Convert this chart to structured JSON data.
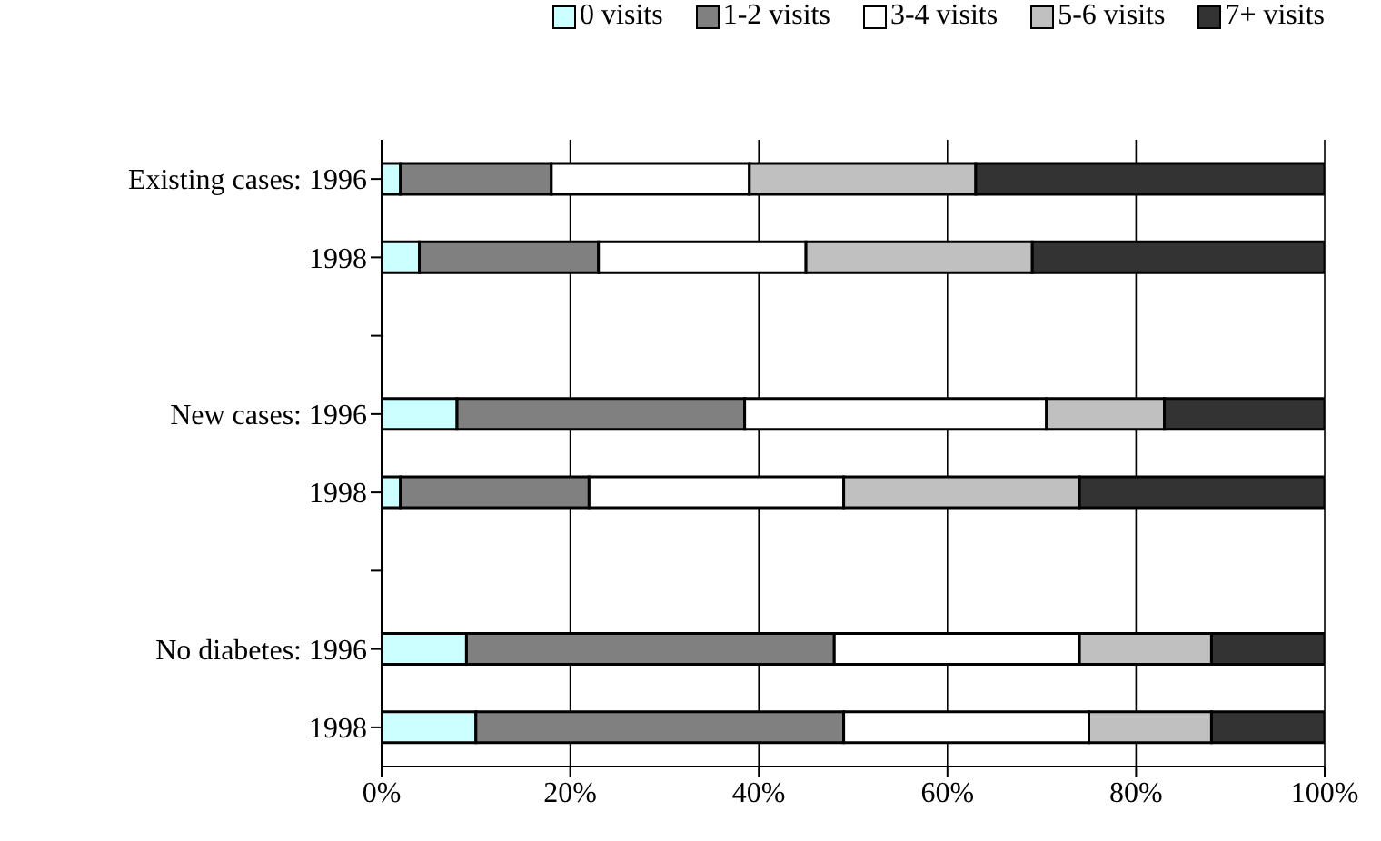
{
  "chart_data": {
    "type": "bar",
    "orientation": "horizontal",
    "stacked": true,
    "categories": [
      "Existing cases:  1996",
      "1998",
      null,
      "New cases:  1996",
      "1998",
      null,
      "No diabetes:  1996",
      "1998"
    ],
    "series": [
      {
        "name": "0 visits",
        "color": "#ccffff",
        "values": [
          2,
          4,
          null,
          8,
          2,
          null,
          9,
          10
        ]
      },
      {
        "name": "1-2 visits",
        "color": "#808080",
        "values": [
          16,
          19,
          null,
          30.5,
          20,
          null,
          39,
          39
        ]
      },
      {
        "name": "3-4 visits",
        "color": "#ffffff",
        "values": [
          21,
          22,
          null,
          32,
          27,
          null,
          26,
          26
        ]
      },
      {
        "name": "5-6 visits",
        "color": "#c0c0c0",
        "values": [
          24,
          24,
          null,
          12.5,
          25,
          null,
          14,
          13
        ]
      },
      {
        "name": "7+ visits",
        "color": "#333333",
        "values": [
          37,
          31,
          null,
          17,
          26,
          null,
          12,
          12
        ]
      }
    ],
    "xlim": [
      0,
      100
    ],
    "xticks": [
      {
        "value": 0,
        "label": "0%"
      },
      {
        "value": 20,
        "label": "20%"
      },
      {
        "value": 40,
        "label": "40%"
      },
      {
        "value": 60,
        "label": "60%"
      },
      {
        "value": 80,
        "label": "80%"
      },
      {
        "value": 100,
        "label": "100%"
      }
    ],
    "grid": "x",
    "legend": "top right"
  }
}
